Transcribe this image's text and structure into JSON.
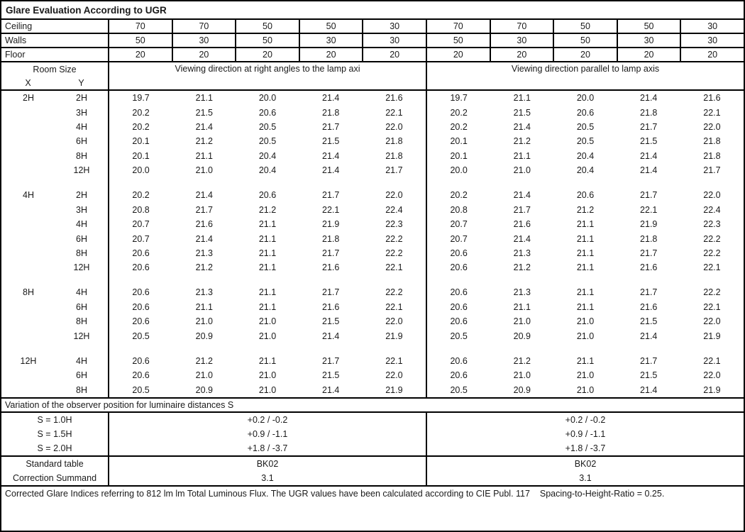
{
  "title": "Glare Evaluation According to UGR",
  "surfaces": [
    {
      "label": "Ceiling",
      "values": [
        "70",
        "70",
        "50",
        "50",
        "30",
        "70",
        "70",
        "50",
        "50",
        "30"
      ]
    },
    {
      "label": "Walls",
      "values": [
        "50",
        "30",
        "50",
        "30",
        "30",
        "50",
        "30",
        "50",
        "30",
        "30"
      ]
    },
    {
      "label": "Floor",
      "values": [
        "20",
        "20",
        "20",
        "20",
        "20",
        "20",
        "20",
        "20",
        "20",
        "20"
      ]
    }
  ],
  "room_size_header": {
    "title": "Room Size",
    "x": "X",
    "y": "Y"
  },
  "viewing_headers": {
    "left": "Viewing direction at right angles to the lamp axi",
    "right": "Viewing direction parallel to lamp axis"
  },
  "ugr_groups": [
    {
      "x": "2H",
      "rows": [
        {
          "y": "2H",
          "values": [
            "19.7",
            "21.1",
            "20.0",
            "21.4",
            "21.6",
            "19.7",
            "21.1",
            "20.0",
            "21.4",
            "21.6"
          ]
        },
        {
          "y": "3H",
          "values": [
            "20.2",
            "21.5",
            "20.6",
            "21.8",
            "22.1",
            "20.2",
            "21.5",
            "20.6",
            "21.8",
            "22.1"
          ]
        },
        {
          "y": "4H",
          "values": [
            "20.2",
            "21.4",
            "20.5",
            "21.7",
            "22.0",
            "20.2",
            "21.4",
            "20.5",
            "21.7",
            "22.0"
          ]
        },
        {
          "y": "6H",
          "values": [
            "20.1",
            "21.2",
            "20.5",
            "21.5",
            "21.8",
            "20.1",
            "21.2",
            "20.5",
            "21.5",
            "21.8"
          ]
        },
        {
          "y": "8H",
          "values": [
            "20.1",
            "21.1",
            "20.4",
            "21.4",
            "21.8",
            "20.1",
            "21.1",
            "20.4",
            "21.4",
            "21.8"
          ]
        },
        {
          "y": "12H",
          "values": [
            "20.0",
            "21.0",
            "20.4",
            "21.4",
            "21.7",
            "20.0",
            "21.0",
            "20.4",
            "21.4",
            "21.7"
          ]
        }
      ]
    },
    {
      "x": "4H",
      "rows": [
        {
          "y": "2H",
          "values": [
            "20.2",
            "21.4",
            "20.6",
            "21.7",
            "22.0",
            "20.2",
            "21.4",
            "20.6",
            "21.7",
            "22.0"
          ]
        },
        {
          "y": "3H",
          "values": [
            "20.8",
            "21.7",
            "21.2",
            "22.1",
            "22.4",
            "20.8",
            "21.7",
            "21.2",
            "22.1",
            "22.4"
          ]
        },
        {
          "y": "4H",
          "values": [
            "20.7",
            "21.6",
            "21.1",
            "21.9",
            "22.3",
            "20.7",
            "21.6",
            "21.1",
            "21.9",
            "22.3"
          ]
        },
        {
          "y": "6H",
          "values": [
            "20.7",
            "21.4",
            "21.1",
            "21.8",
            "22.2",
            "20.7",
            "21.4",
            "21.1",
            "21.8",
            "22.2"
          ]
        },
        {
          "y": "8H",
          "values": [
            "20.6",
            "21.3",
            "21.1",
            "21.7",
            "22.2",
            "20.6",
            "21.3",
            "21.1",
            "21.7",
            "22.2"
          ]
        },
        {
          "y": "12H",
          "values": [
            "20.6",
            "21.2",
            "21.1",
            "21.6",
            "22.1",
            "20.6",
            "21.2",
            "21.1",
            "21.6",
            "22.1"
          ]
        }
      ]
    },
    {
      "x": "8H",
      "rows": [
        {
          "y": "4H",
          "values": [
            "20.6",
            "21.3",
            "21.1",
            "21.7",
            "22.2",
            "20.6",
            "21.3",
            "21.1",
            "21.7",
            "22.2"
          ]
        },
        {
          "y": "6H",
          "values": [
            "20.6",
            "21.1",
            "21.1",
            "21.6",
            "22.1",
            "20.6",
            "21.1",
            "21.1",
            "21.6",
            "22.1"
          ]
        },
        {
          "y": "8H",
          "values": [
            "20.6",
            "21.0",
            "21.0",
            "21.5",
            "22.0",
            "20.6",
            "21.0",
            "21.0",
            "21.5",
            "22.0"
          ]
        },
        {
          "y": "12H",
          "values": [
            "20.5",
            "20.9",
            "21.0",
            "21.4",
            "21.9",
            "20.5",
            "20.9",
            "21.0",
            "21.4",
            "21.9"
          ]
        }
      ]
    },
    {
      "x": "12H",
      "rows": [
        {
          "y": "4H",
          "values": [
            "20.6",
            "21.2",
            "21.1",
            "21.7",
            "22.1",
            "20.6",
            "21.2",
            "21.1",
            "21.7",
            "22.1"
          ]
        },
        {
          "y": "6H",
          "values": [
            "20.6",
            "21.0",
            "21.0",
            "21.5",
            "22.0",
            "20.6",
            "21.0",
            "21.0",
            "21.5",
            "22.0"
          ]
        },
        {
          "y": "8H",
          "values": [
            "20.5",
            "20.9",
            "21.0",
            "21.4",
            "21.9",
            "20.5",
            "20.9",
            "21.0",
            "21.4",
            "21.9"
          ]
        }
      ]
    }
  ],
  "variation_section": {
    "header": "Variation of the observer position for luminaire distances S",
    "rows": [
      {
        "label": "S = 1.0H",
        "left": "+0.2 / -0.2",
        "right": "+0.2 / -0.2"
      },
      {
        "label": "S = 1.5H",
        "left": "+0.9 / -1.1",
        "right": "+0.9 / -1.1"
      },
      {
        "label": "S = 2.0H",
        "left": "+1.8 / -3.7",
        "right": "+1.8 / -3.7"
      }
    ]
  },
  "summary_rows": [
    {
      "label": "Standard table",
      "left": "BK02",
      "right": "BK02"
    },
    {
      "label": "Correction Summand",
      "left": "3.1",
      "right": "3.1"
    }
  ],
  "footer": "Corrected Glare Indices referring to 812 lm lm Total Luminous Flux. The UGR values have been calculated according to CIE Publ. 117    Spacing-to-Height-Ratio = 0.25."
}
